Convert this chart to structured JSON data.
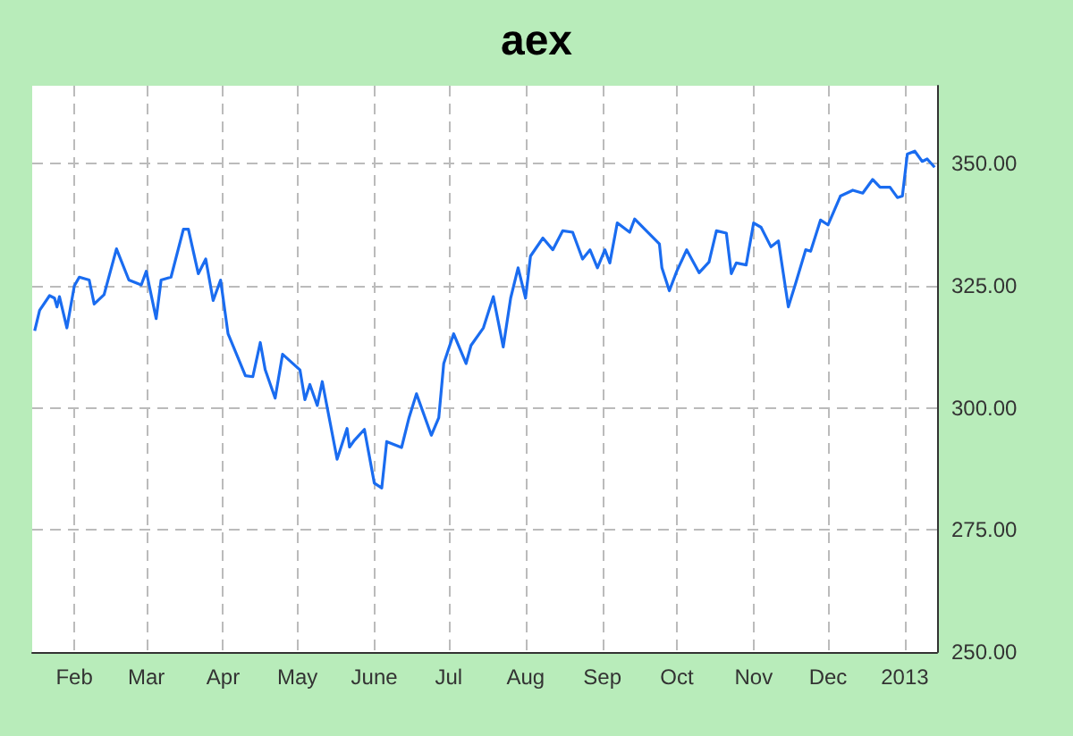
{
  "chart_data": {
    "type": "line",
    "title": "aex",
    "x": [
      "2012-01-16",
      "2012-01-18",
      "2012-01-22",
      "2012-01-24",
      "2012-01-25",
      "2012-01-26",
      "2012-01-29",
      "2012-02-01",
      "2012-02-03",
      "2012-02-07",
      "2012-02-09",
      "2012-02-13",
      "2012-02-18",
      "2012-02-23",
      "2012-02-28",
      "2012-03-01",
      "2012-03-05",
      "2012-03-07",
      "2012-03-11",
      "2012-03-16",
      "2012-03-18",
      "2012-03-22",
      "2012-03-25",
      "2012-03-28",
      "2012-03-31",
      "2012-04-03",
      "2012-04-10",
      "2012-04-13",
      "2012-04-16",
      "2012-04-18",
      "2012-04-22",
      "2012-04-25",
      "2012-05-02",
      "2012-05-04",
      "2012-05-06",
      "2012-05-09",
      "2012-05-11",
      "2012-05-17",
      "2012-05-21",
      "2012-05-22",
      "2012-05-24",
      "2012-05-28",
      "2012-06-01",
      "2012-06-04",
      "2012-06-06",
      "2012-06-12",
      "2012-06-15",
      "2012-06-18",
      "2012-06-24",
      "2012-06-27",
      "2012-06-29",
      "2012-07-03",
      "2012-07-08",
      "2012-07-10",
      "2012-07-15",
      "2012-07-19",
      "2012-07-23",
      "2012-07-26",
      "2012-07-29",
      "2012-08-01",
      "2012-08-03",
      "2012-08-08",
      "2012-08-12",
      "2012-08-16",
      "2012-08-20",
      "2012-08-24",
      "2012-08-27",
      "2012-08-30",
      "2012-09-02",
      "2012-09-04",
      "2012-09-07",
      "2012-09-12",
      "2012-09-14",
      "2012-09-24",
      "2012-09-25",
      "2012-09-28",
      "2012-10-01",
      "2012-10-05",
      "2012-10-10",
      "2012-10-14",
      "2012-10-17",
      "2012-10-21",
      "2012-10-23",
      "2012-10-25",
      "2012-10-29",
      "2012-11-01",
      "2012-11-04",
      "2012-11-08",
      "2012-11-11",
      "2012-11-15",
      "2012-11-18",
      "2012-11-22",
      "2012-11-24",
      "2012-11-28",
      "2012-12-01",
      "2012-12-06",
      "2012-12-11",
      "2012-12-15",
      "2012-12-19",
      "2012-12-22",
      "2012-12-26",
      "2012-12-29",
      "2012-12-31",
      "2013-01-02",
      "2013-01-05",
      "2013-01-08",
      "2013-01-10",
      "2013-01-13"
    ],
    "series": [
      {
        "color": "#1a6cf0",
        "values": [
          315.8,
          320,
          323,
          322.5,
          320.7,
          322.8,
          316.4,
          325,
          326.8,
          326.2,
          321.3,
          323.2,
          332.6,
          326.2,
          325.2,
          328,
          318.3,
          326.2,
          326.8,
          336.6,
          336.6,
          327.5,
          330.5,
          322,
          326.2,
          315.2,
          306.6,
          306.4,
          313.4,
          307.8,
          302,
          311,
          307.8,
          301.7,
          304.8,
          300.5,
          305.4,
          289.5,
          295.8,
          292,
          293.4,
          295.6,
          284.6,
          283.6,
          293.1,
          291.9,
          298,
          302.9,
          294.4,
          298,
          309.1,
          315.2,
          309.1,
          312.8,
          316.4,
          322.8,
          312.5,
          322.5,
          328.7,
          322.5,
          331.1,
          334.8,
          332.4,
          336.3,
          336,
          330.5,
          332.4,
          328.7,
          332.4,
          329.7,
          337.9,
          336,
          338.7,
          333.6,
          328.7,
          324,
          328,
          332.4,
          327.7,
          329.9,
          336.3,
          335.8,
          327.5,
          329.7,
          329.3,
          337.9,
          337,
          333,
          334.2,
          320.7,
          325.6,
          332.4,
          332.1,
          338.5,
          337.5,
          343.4,
          344.6,
          344,
          346.8,
          345.2,
          345.2,
          343.1,
          343.4,
          352,
          352.6,
          350.5,
          351,
          349.3
        ]
      }
    ],
    "xlim": [
      "2012-01-15",
      "2013-01-14"
    ],
    "xticks": [
      {
        "value": "2012-02-01",
        "label": "Feb"
      },
      {
        "value": "2012-03-01",
        "label": "Mar"
      },
      {
        "value": "2012-04-01",
        "label": "Apr"
      },
      {
        "value": "2012-05-01",
        "label": "May"
      },
      {
        "value": "2012-06-01",
        "label": "June"
      },
      {
        "value": "2012-07-01",
        "label": "Jul"
      },
      {
        "value": "2012-08-01",
        "label": "Aug"
      },
      {
        "value": "2012-09-01",
        "label": "Sep"
      },
      {
        "value": "2012-10-01",
        "label": "Oct"
      },
      {
        "value": "2012-11-01",
        "label": "Nov"
      },
      {
        "value": "2012-12-01",
        "label": "Dec"
      },
      {
        "value": "2013-01-01",
        "label": "2013"
      }
    ],
    "ylim": [
      250,
      366
    ],
    "yticks": [
      {
        "value": 250,
        "label": "250.00"
      },
      {
        "value": 275,
        "label": "275.00"
      },
      {
        "value": 300,
        "label": "300.00"
      },
      {
        "value": 325,
        "label": "325.00"
      },
      {
        "value": 350,
        "label": "350.00"
      }
    ],
    "grid": true,
    "marker": "none",
    "line_style": "solid"
  }
}
